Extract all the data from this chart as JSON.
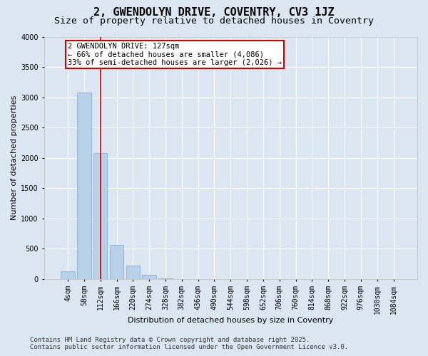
{
  "title1": "2, GWENDOLYN DRIVE, COVENTRY, CV3 1JZ",
  "title2": "Size of property relative to detached houses in Coventry",
  "xlabel": "Distribution of detached houses by size in Coventry",
  "ylabel": "Number of detached properties",
  "bar_labels": [
    "4sqm",
    "58sqm",
    "112sqm",
    "166sqm",
    "220sqm",
    "274sqm",
    "328sqm",
    "382sqm",
    "436sqm",
    "490sqm",
    "544sqm",
    "598sqm",
    "652sqm",
    "706sqm",
    "760sqm",
    "814sqm",
    "868sqm",
    "922sqm",
    "976sqm",
    "1030sqm",
    "1084sqm"
  ],
  "bar_values": [
    130,
    3080,
    2080,
    560,
    220,
    70,
    10,
    5,
    2,
    1,
    0,
    0,
    0,
    0,
    0,
    0,
    0,
    0,
    0,
    0,
    0
  ],
  "bar_color": "#b8d0e8",
  "bar_edge_color": "#7aaad0",
  "annotation_line1": "2 GWENDOLYN DRIVE: 127sqm",
  "annotation_line2": "← 66% of detached houses are smaller (4,086)",
  "annotation_line3": "33% of semi-detached houses are larger (2,026) →",
  "annotation_box_color": "#ffffff",
  "annotation_box_edge_color": "#cc0000",
  "vline_color": "#cc0000",
  "ylim": [
    0,
    4000
  ],
  "yticks": [
    0,
    500,
    1000,
    1500,
    2000,
    2500,
    3000,
    3500,
    4000
  ],
  "footer1": "Contains HM Land Registry data © Crown copyright and database right 2025.",
  "footer2": "Contains public sector information licensed under the Open Government Licence v3.0.",
  "bg_color": "#dce6f0",
  "plot_bg_color": "#dce6f0",
  "grid_color": "#ffffff",
  "title_fontsize": 11,
  "subtitle_fontsize": 9.5,
  "tick_fontsize": 7,
  "label_fontsize": 8,
  "footer_fontsize": 6.5,
  "annot_fontsize": 7.5
}
